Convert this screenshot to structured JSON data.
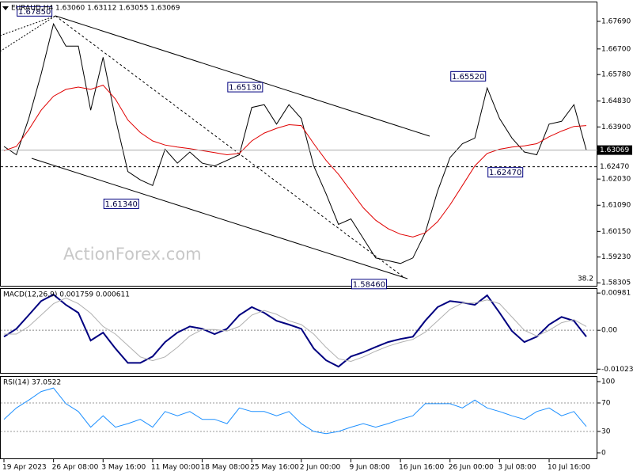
{
  "chart_data": [
    {
      "type": "line",
      "title": "EURAUD,H4  1.63060 1.63112 1.63055 1.63069",
      "watermark": "ActionForex.com",
      "note": "38.2",
      "ylim": [
        1.5817,
        1.684
      ],
      "yticks": [
        {
          "value": 1.6769,
          "label": "1.67690"
        },
        {
          "value": 1.667,
          "label": "1.66700"
        },
        {
          "value": 1.6578,
          "label": "1.65780"
        },
        {
          "value": 1.6483,
          "label": "1.64830"
        },
        {
          "value": 1.639,
          "label": "1.63900"
        },
        {
          "value": 1.6203,
          "label": "1.62030"
        },
        {
          "value": 1.6109,
          "label": "1.61090"
        },
        {
          "value": 1.6015,
          "label": "1.60150"
        },
        {
          "value": 1.5923,
          "label": "1.59230"
        },
        1.58305
      ],
      "series": [
        {
          "color": "#000000",
          "values": [
            1.632,
            1.629,
            1.642,
            1.658,
            1.676,
            1.668,
            1.668,
            1.645,
            1.664,
            1.642,
            1.623,
            1.62,
            1.618,
            1.631,
            1.626,
            1.63,
            1.626,
            1.625,
            1.627,
            1.629,
            1.646,
            1.647,
            1.64,
            1.647,
            1.642,
            1.625,
            1.615,
            1.604,
            1.606,
            1.599,
            1.592,
            1.591,
            1.59,
            1.592,
            1.601,
            1.616,
            1.628,
            1.633,
            1.635,
            1.653,
            1.642,
            1.635,
            1.63,
            1.629,
            1.64,
            1.641,
            1.647,
            1.63069
          ]
        },
        {
          "color": "#e00000",
          "values": [
            1.6305,
            1.632,
            1.638,
            1.645,
            1.65,
            1.6525,
            1.6533,
            1.6525,
            1.654,
            1.649,
            1.6415,
            1.637,
            1.634,
            1.6325,
            1.6318,
            1.6312,
            1.6305,
            1.6298,
            1.629,
            1.6295,
            1.634,
            1.6368,
            1.6385,
            1.6398,
            1.6395,
            1.633,
            1.627,
            1.622,
            1.616,
            1.61,
            1.6055,
            1.6025,
            1.6005,
            1.5995,
            1.601,
            1.605,
            1.611,
            1.618,
            1.625,
            1.6295,
            1.631,
            1.6318,
            1.6322,
            1.633,
            1.6355,
            1.6375,
            1.6392,
            1.6395
          ]
        }
      ],
      "price_lines": [
        {
          "value": 1.63069,
          "label": "1.63069",
          "style": "solid"
        },
        {
          "value": 1.6247,
          "label": "1.62470",
          "style": "dashed"
        }
      ],
      "annotations": [
        {
          "value": 1.6785,
          "label": "1.67850",
          "index": 4
        },
        {
          "value": 1.6134,
          "label": "1.61340",
          "index": 11
        },
        {
          "value": 1.6513,
          "label": "1.65130",
          "index": 21
        },
        {
          "value": 1.5846,
          "label": "1.58460",
          "index": 31
        },
        {
          "value": 1.6552,
          "label": "1.65520",
          "index": 39
        },
        {
          "value": 1.6247,
          "label": "1.62470",
          "index": 42
        }
      ]
    },
    {
      "type": "line",
      "title": "MACD(12,26,9) 0.001759 0.000611",
      "ylim": [
        -0.01143,
        0.01109
      ],
      "yticks": [
        0.00981,
        {
          "value": 0,
          "label": "0.00"
        },
        -0.010235
      ],
      "series": [
        {
          "color": "#000080",
          "values": [
            -0.0017,
            0.0004,
            0.004,
            0.0077,
            0.0094,
            0.0067,
            0.0046,
            -0.0027,
            -0.0006,
            -0.0048,
            -0.0086,
            -0.0086,
            -0.0069,
            -0.0031,
            -0.0006,
            0.001,
            0.0004,
            -0.001,
            0.0004,
            0.004,
            0.0061,
            0.0046,
            0.0025,
            0.0015,
            0.0004,
            -0.0048,
            -0.0079,
            -0.0096,
            -0.0069,
            -0.0058,
            -0.0044,
            -0.0031,
            -0.0023,
            -0.0017,
            0.0025,
            0.0061,
            0.0077,
            0.0073,
            0.0067,
            0.0092,
            0.0046,
            -0.0002,
            -0.0031,
            -0.0017,
            0.0015,
            0.0035,
            0.0025,
            -0.0017
          ]
        },
        {
          "color": "#b0b0b0",
          "values": [
            -0.001,
            -0.001,
            0.001,
            0.004,
            0.007,
            0.0085,
            0.007,
            0.0045,
            0.001,
            -0.001,
            -0.004,
            -0.007,
            -0.008,
            -0.007,
            -0.0045,
            -0.0015,
            0.0002,
            0.0002,
            -0.0002,
            0.001,
            0.004,
            0.0052,
            0.0042,
            0.0025,
            0.0015,
            -0.001,
            -0.0045,
            -0.0075,
            -0.0082,
            -0.007,
            -0.0055,
            -0.0042,
            -0.0032,
            -0.0024,
            -0.0005,
            0.0025,
            0.0055,
            0.0072,
            0.0072,
            0.008,
            0.007,
            0.0035,
            0,
            -0.0015,
            0,
            0.002,
            0.0028,
            0.001
          ]
        }
      ]
    },
    {
      "type": "line",
      "title": "RSI(14) 37.0522",
      "ylim": [
        -8.9,
        107.8
      ],
      "yticks": [
        100,
        70,
        30,
        0
      ],
      "levels": [
        70,
        30
      ],
      "categories": [
        "19 Apr 2023",
        null,
        null,
        null,
        "26 Apr 08:00",
        null,
        null,
        null,
        "3 May 16:00",
        null,
        null,
        null,
        "11 May 00:00",
        null,
        null,
        null,
        "18 May 08:00",
        null,
        null,
        null,
        "25 May 16:00",
        null,
        null,
        null,
        "2 Jun 00:00",
        null,
        null,
        null,
        "9 Jun 08:00",
        null,
        null,
        null,
        "16 Jun 16:00",
        null,
        null,
        null,
        "26 Jun 00:00",
        null,
        null,
        null,
        "3 Jul 08:00",
        null,
        null,
        null,
        "10 Jul 16:00",
        null,
        null,
        null
      ],
      "series": [
        {
          "color": "#1e90ff",
          "values": [
            47,
            63,
            74,
            86,
            91,
            69,
            58,
            36,
            52,
            36,
            41,
            47,
            36,
            58,
            52,
            58,
            47,
            47,
            41,
            63,
            58,
            58,
            52,
            58,
            41,
            30,
            27,
            30,
            36,
            41,
            36,
            41,
            47,
            52,
            69,
            69,
            69,
            63,
            74,
            63,
            58,
            52,
            47,
            58,
            63,
            52,
            58,
            37
          ]
        }
      ]
    }
  ]
}
